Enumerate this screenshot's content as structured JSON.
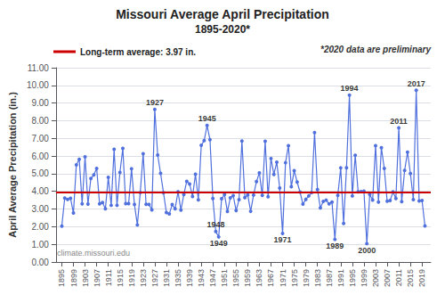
{
  "chart_data": {
    "type": "line",
    "title": "Missouri Average April Precipitation",
    "subtitle": "1895-2020*",
    "ylabel": "April Average Precipitation (in.)",
    "marker": "circle",
    "grid": true,
    "x": [
      1895,
      1896,
      1897,
      1898,
      1899,
      1900,
      1901,
      1902,
      1903,
      1904,
      1905,
      1906,
      1907,
      1908,
      1909,
      1910,
      1911,
      1912,
      1913,
      1914,
      1915,
      1916,
      1917,
      1918,
      1919,
      1920,
      1921,
      1922,
      1923,
      1924,
      1925,
      1926,
      1927,
      1928,
      1929,
      1930,
      1931,
      1932,
      1933,
      1934,
      1935,
      1936,
      1937,
      1938,
      1939,
      1940,
      1941,
      1942,
      1943,
      1944,
      1945,
      1946,
      1947,
      1948,
      1949,
      1950,
      1951,
      1952,
      1953,
      1954,
      1955,
      1956,
      1957,
      1958,
      1959,
      1960,
      1961,
      1962,
      1963,
      1964,
      1965,
      1966,
      1967,
      1968,
      1969,
      1970,
      1971,
      1972,
      1973,
      1974,
      1975,
      1976,
      1977,
      1978,
      1979,
      1980,
      1981,
      1982,
      1983,
      1984,
      1985,
      1986,
      1987,
      1988,
      1989,
      1990,
      1991,
      1992,
      1993,
      1994,
      1995,
      1996,
      1997,
      1998,
      1999,
      2000,
      2001,
      2002,
      2003,
      2004,
      2005,
      2006,
      2007,
      2008,
      2009,
      2010,
      2011,
      2012,
      2013,
      2014,
      2015,
      2016,
      2017,
      2018,
      2019,
      2020
    ],
    "values": [
      2.03,
      3.62,
      3.54,
      3.61,
      2.77,
      5.5,
      5.82,
      3.29,
      5.95,
      3.28,
      4.73,
      4.93,
      5.3,
      3.29,
      3.37,
      3.02,
      4.79,
      3.21,
      6.38,
      3.21,
      5.07,
      6.43,
      3.3,
      3.3,
      5.28,
      3.26,
      2.1,
      3.93,
      6.13,
      3.27,
      3.26,
      2.95,
      8.64,
      6.06,
      5.02,
      3.92,
      2.8,
      2.72,
      3.25,
      3.01,
      3.98,
      2.94,
      3.82,
      4.57,
      4.42,
      3.71,
      4.97,
      3.52,
      6.61,
      6.88,
      7.73,
      6.93,
      3.6,
      1.73,
      1.42,
      3.58,
      3.82,
      2.86,
      3.63,
      3.76,
      2.91,
      3.53,
      6.85,
      3.65,
      3.8,
      2.87,
      3.79,
      4.55,
      5.05,
      3.77,
      6.84,
      3.7,
      5.86,
      4.96,
      5.65,
      4.19,
      1.62,
      5.62,
      6.59,
      4.26,
      5.17,
      4.53,
      3.96,
      3.28,
      3.55,
      3.74,
      3.93,
      7.33,
      4.1,
      3.06,
      3.43,
      3.5,
      3.29,
      3.39,
      1.28,
      3.77,
      5.33,
      2.18,
      5.34,
      9.45,
      3.74,
      6.04,
      3.97,
      3.99,
      4.01,
      1.04,
      3.82,
      3.51,
      6.59,
      3.39,
      6.47,
      5.3,
      3.44,
      3.48,
      3.97,
      3.59,
      7.6,
      3.42,
      5.18,
      6.22,
      5.01,
      3.53,
      9.73,
      3.46,
      3.48,
      2.04
    ],
    "xlim": [
      1893,
      2022
    ],
    "xticks": [
      1895,
      1899,
      1903,
      1907,
      1911,
      1915,
      1919,
      1923,
      1927,
      1931,
      1935,
      1939,
      1943,
      1947,
      1951,
      1955,
      1959,
      1963,
      1967,
      1971,
      1975,
      1979,
      1983,
      1987,
      1991,
      1995,
      1999,
      2003,
      2007,
      2011,
      2015,
      2019
    ],
    "ylim": [
      0.0,
      11.0
    ],
    "yticks": [
      {
        "value": 0,
        "label": "0.00"
      },
      {
        "value": 1,
        "label": "1.00"
      },
      {
        "value": 2,
        "label": "2.00"
      },
      {
        "value": 3,
        "label": "3.00"
      },
      {
        "value": 4,
        "label": "4.00"
      },
      {
        "value": 5,
        "label": "5.00"
      },
      {
        "value": 6,
        "label": "6.00"
      },
      {
        "value": 7,
        "label": "7.00"
      },
      {
        "value": 8,
        "label": "8.00"
      },
      {
        "value": 9,
        "label": "9.00"
      },
      {
        "value": 10,
        "label": "10.00"
      },
      {
        "value": 11,
        "label": "11.00"
      }
    ],
    "reference_line": {
      "value": 3.97,
      "label": "Long-term average: 3.97 in.",
      "color": "#CC0000"
    },
    "annotations": [
      {
        "x": 1927,
        "y": 8.64,
        "text": "1927"
      },
      {
        "x": 1945,
        "y": 7.73,
        "text": "1945"
      },
      {
        "x": 1948,
        "y": 1.73,
        "text": "1948"
      },
      {
        "x": 1949,
        "y": 1.42,
        "text": "1949"
      },
      {
        "x": 1971,
        "y": 1.62,
        "text": "1971"
      },
      {
        "x": 1989,
        "y": 1.28,
        "text": "1989"
      },
      {
        "x": 1994,
        "y": 9.45,
        "text": "1994"
      },
      {
        "x": 2000,
        "y": 1.04,
        "text": "2000"
      },
      {
        "x": 2011,
        "y": 7.6,
        "text": "2011"
      },
      {
        "x": 2017,
        "y": 9.73,
        "text": "2017"
      }
    ],
    "note": "*2020 data are preliminary",
    "watermark": "climate.missouri.edu"
  }
}
